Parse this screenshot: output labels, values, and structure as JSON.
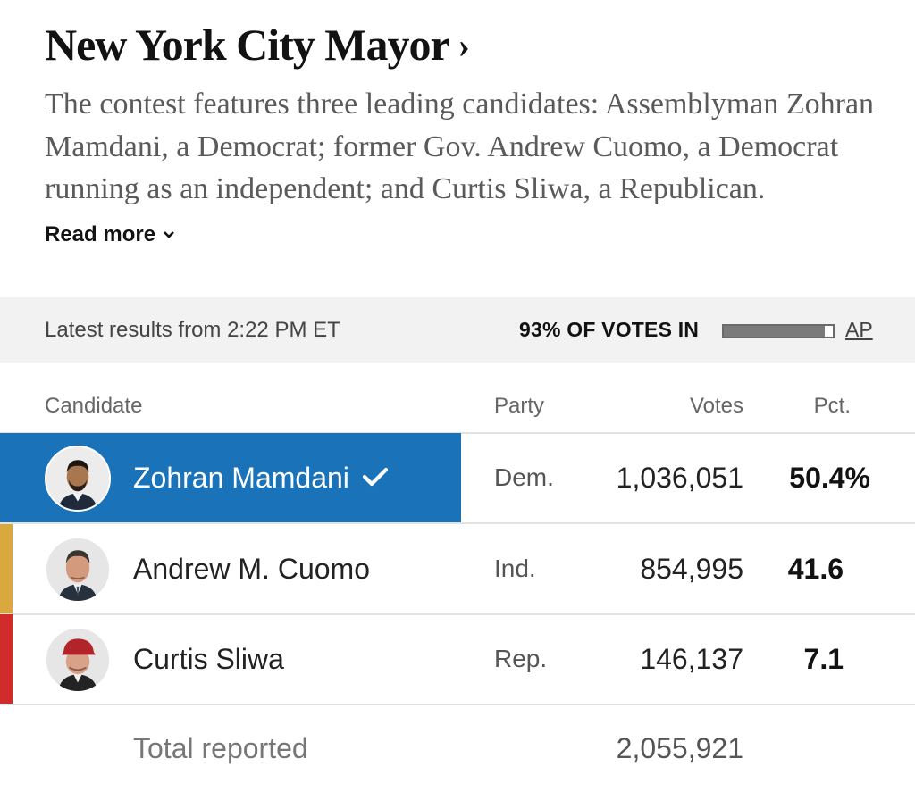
{
  "race": {
    "title": "New York City Mayor",
    "title_chevron": "›",
    "summary": "The contest features three leading candidates: Assemblyman Zohran Mamdani, a Democrat; former Gov. Andrew Cuomo, a Democrat running as an independent; and Curtis Sliwa, a Republican.",
    "read_more_label": "Read more"
  },
  "status": {
    "latest_results": "Latest results from 2:22 PM ET",
    "reporting_label": "93% OF VOTES IN",
    "reporting_fraction": 0.93,
    "source": "AP"
  },
  "table": {
    "headers": {
      "candidate": "Candidate",
      "party": "Party",
      "votes": "Votes",
      "pct": "Pct."
    },
    "rows": [
      {
        "name": "Zohran Mamdani",
        "party": "Dem.",
        "votes": "1,036,051",
        "pct": "50.4%",
        "winner": true,
        "color": "#1a73b8"
      },
      {
        "name": "Andrew M. Cuomo",
        "party": "Ind.",
        "votes": "854,995",
        "pct": "41.6",
        "winner": false,
        "color": "#d9a83f"
      },
      {
        "name": "Curtis Sliwa",
        "party": "Rep.",
        "votes": "146,137",
        "pct": "7.1",
        "winner": false,
        "color": "#d22b2b"
      }
    ],
    "total_label": "Total reported",
    "total_votes": "2,055,921"
  },
  "icons": {
    "title_chevron": "chevron-right-icon",
    "read_more_caret": "chevron-down-icon",
    "winner_check": "checkmark-icon"
  }
}
